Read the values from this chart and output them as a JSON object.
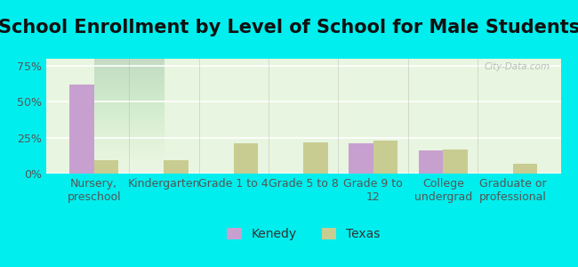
{
  "title": "School Enrollment by Level of School for Male Students",
  "categories": [
    "Nursery,\npreschool",
    "Kindergarten",
    "Grade 1 to 4",
    "Grade 5 to 8",
    "Grade 9 to\n12",
    "College\nundergrad",
    "Graduate or\nprofessional"
  ],
  "kenedy": [
    62,
    0,
    0,
    0,
    21,
    16,
    0
  ],
  "texas": [
    9,
    9,
    21,
    22,
    23,
    17,
    7
  ],
  "kenedy_color": "#c8a0d0",
  "texas_color": "#c8cc90",
  "bar_width": 0.35,
  "ylim": [
    0,
    80
  ],
  "yticks": [
    0,
    25,
    50,
    75
  ],
  "ytick_labels": [
    "0%",
    "25%",
    "50%",
    "75%"
  ],
  "legend_kenedy": "Kenedy",
  "legend_texas": "Texas",
  "background_outer": "#00eeee",
  "background_inner": "#e8f5e0",
  "grid_color": "#ffffff",
  "title_fontsize": 15,
  "axis_label_fontsize": 9,
  "tick_fontsize": 9,
  "legend_fontsize": 10,
  "watermark": "City-Data.com"
}
